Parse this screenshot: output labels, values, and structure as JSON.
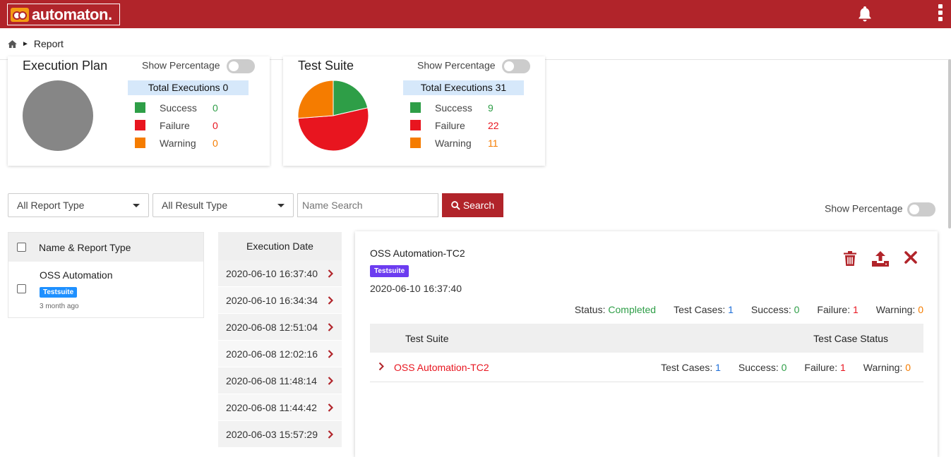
{
  "header": {
    "logo_text": "automaton.",
    "brand_color": "#b1242a",
    "icons": [
      "bell-icon",
      "kebab-menu-icon"
    ]
  },
  "breadcrumb": {
    "home_icon": "home-icon",
    "separator": "►",
    "current": "Report"
  },
  "cards": [
    {
      "title": "Execution Plan",
      "show_percentage_label": "Show Percentage",
      "total_label": "Total Executions 0",
      "legend": [
        {
          "label": "Success",
          "value": "0",
          "color": "#2e9e47"
        },
        {
          "label": "Failure",
          "value": "0",
          "color": "#e8151f"
        },
        {
          "label": "Warning",
          "value": "0",
          "color": "#f57c00"
        }
      ]
    },
    {
      "title": "Test Suite",
      "show_percentage_label": "Show Percentage",
      "total_label": "Total Executions 31",
      "legend": [
        {
          "label": "Success",
          "value": "9",
          "color": "#2e9e47"
        },
        {
          "label": "Failure",
          "value": "22",
          "color": "#e8151f"
        },
        {
          "label": "Warning",
          "value": "11",
          "color": "#f57c00"
        }
      ]
    }
  ],
  "filters": {
    "report_type": "All Report Type",
    "result_type": "All Result Type",
    "name_search_placeholder": "Name Search",
    "search_label": "Search",
    "show_percentage_label": "Show Percentage"
  },
  "report_list": {
    "header": "Name & Report Type",
    "items": [
      {
        "name": "OSS Automation",
        "badge": "Testsuite",
        "ago": "3 month ago"
      }
    ]
  },
  "execution_dates": {
    "header": "Execution Date",
    "rows": [
      "2020-06-10 16:37:40",
      "2020-06-10 16:34:34",
      "2020-06-08 12:51:04",
      "2020-06-08 12:02:16",
      "2020-06-08 11:48:14",
      "2020-06-08 11:44:42",
      "2020-06-03 15:57:29"
    ]
  },
  "detail": {
    "title": "OSS Automation-TC2",
    "badge": "Testsuite",
    "date": "2020-06-10 16:37:40",
    "actions": [
      "trash-icon",
      "upload-icon",
      "close-icon"
    ],
    "status_label": "Status:",
    "status_value": "Completed",
    "test_cases_label": "Test Cases:",
    "test_cases_value": "1",
    "success_label": "Success:",
    "success_value": "0",
    "failure_label": "Failure:",
    "failure_value": "1",
    "warning_label": "Warning:",
    "warning_value": "0",
    "table": {
      "col_suite": "Test Suite",
      "col_status": "Test Case Status",
      "rows": [
        {
          "name": "OSS Automation-TC2",
          "test_cases_label": "Test Cases:",
          "test_cases_value": "1",
          "success_label": "Success:",
          "success_value": "0",
          "failure_label": "Failure:",
          "failure_value": "1",
          "warning_label": "Warning:",
          "warning_value": "0"
        }
      ]
    }
  }
}
